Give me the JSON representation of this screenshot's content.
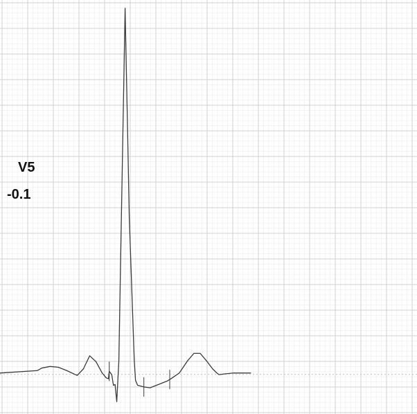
{
  "chart_data": {
    "type": "line",
    "title": "",
    "xlabel": "",
    "ylabel": "",
    "grid": true,
    "colors": {
      "trace": "#3a3a3a",
      "grid_major": "#d2d2d2",
      "grid_minor": "#ececec",
      "baseline": "#bdbdbd",
      "label": "#111111"
    },
    "lead_label": {
      "name": "V5",
      "value": "-0.1"
    },
    "xlim": [
      0,
      1000
    ],
    "ylim": [
      -0.5,
      4.55
    ],
    "series": [
      {
        "x": [
          0,
          90,
          100,
          120,
          140,
          160,
          185,
          200,
          215,
          230,
          245,
          255,
          260,
          262,
          268,
          272,
          276,
          280,
          285,
          300,
          305,
          310,
          322,
          325,
          330,
          345,
          360,
          400,
          410,
          430,
          450,
          465,
          480,
          495,
          510,
          520,
          525,
          540,
          560,
          602
        ],
        "y": [
          0,
          0.03,
          0.06,
          0.08,
          0.07,
          0.03,
          -0.03,
          0.05,
          0.21,
          0.14,
          0,
          -0.06,
          -0.07,
          0.02,
          -0.02,
          -0.15,
          -0.14,
          -0.35,
          0.15,
          4.45,
          3.2,
          1.9,
          0.15,
          -0.09,
          -0.15,
          -0.17,
          -0.18,
          -0.1,
          -0.07,
          0,
          0.15,
          0.24,
          0.24,
          0.15,
          0.05,
          0,
          -0.02,
          -0.01,
          0,
          0
        ]
      }
    ],
    "markers": [
      {
        "x": 262
      },
      {
        "x": 345
      },
      {
        "x": 407
      }
    ]
  }
}
